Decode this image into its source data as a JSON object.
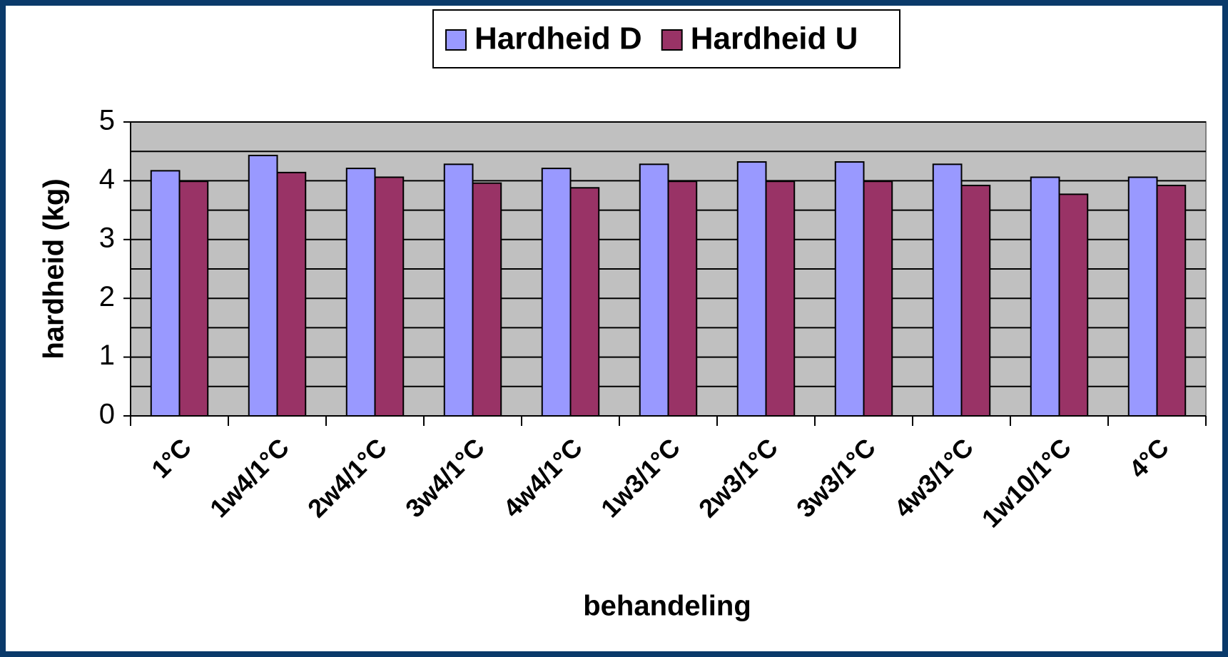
{
  "chart_data": {
    "type": "bar",
    "categories": [
      "1°C",
      "1w4/1°C",
      "2w4/1°C",
      "3w4/1°C",
      "4w4/1°C",
      "1w3/1°C",
      "2w3/1°C",
      "3w3/1°C",
      "4w3/1°C",
      "1w10/1°C",
      "4°C"
    ],
    "series": [
      {
        "name": "Hardheid D",
        "color": "#9999ff",
        "values": [
          4.17,
          4.43,
          4.21,
          4.28,
          4.21,
          4.28,
          4.32,
          4.32,
          4.28,
          4.06,
          4.06
        ]
      },
      {
        "name": "Hardheid U",
        "color": "#993366",
        "values": [
          3.99,
          4.14,
          4.06,
          3.96,
          3.88,
          3.99,
          3.99,
          3.99,
          3.92,
          3.77,
          3.92
        ]
      }
    ],
    "x_label": "behandeling",
    "y_label": "hardheid (kg)",
    "ylim": [
      0,
      5
    ],
    "yticks": [
      0,
      1,
      2,
      3,
      4,
      5
    ],
    "minor_yticks": [
      0.5,
      1.5,
      2.5,
      3.5,
      4.5
    ],
    "grid": true,
    "legend": "top"
  }
}
